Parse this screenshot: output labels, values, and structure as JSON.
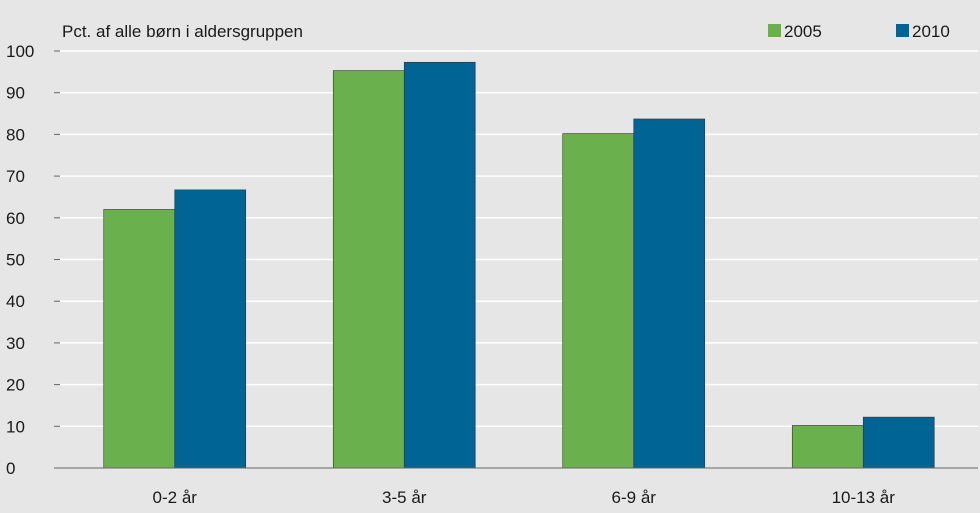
{
  "chart_data": {
    "type": "bar",
    "ylabel": "Pct. af alle børn i aldersgruppen",
    "categories": [
      "0-2 år",
      "3-5 år",
      "6-9 år",
      "10-13 år"
    ],
    "series": [
      {
        "name": "2005",
        "color": "#6ab04c",
        "values": [
          62,
          95.3,
          80.2,
          10.2
        ]
      },
      {
        "name": "2010",
        "color": "#006494",
        "values": [
          66.7,
          97.3,
          83.7,
          12.2
        ]
      }
    ],
    "ylim": [
      0,
      100
    ],
    "yticks": [
      0,
      10,
      20,
      30,
      40,
      50,
      60,
      70,
      80,
      90,
      100
    ],
    "grid": true,
    "legend": "top-right"
  },
  "colors": {
    "background": "#e6e6e6",
    "gridline": "#ffffff",
    "axis": "#666666"
  }
}
